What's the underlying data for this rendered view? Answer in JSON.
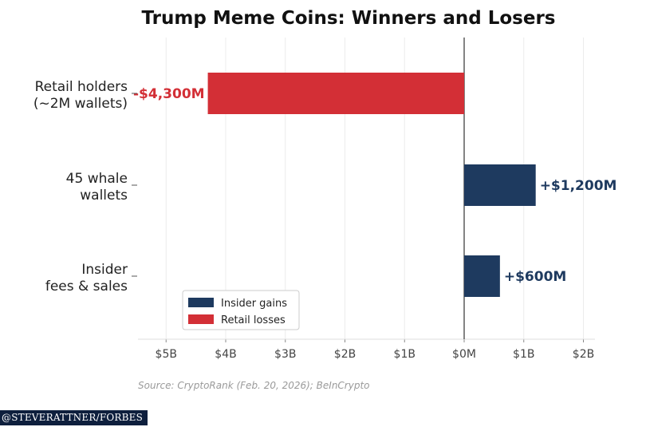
{
  "chart_data": {
    "type": "bar",
    "orientation": "horizontal",
    "title": "Trump Meme Coins: Winners and Losers",
    "categories": [
      [
        "Retail holders",
        "(~2M wallets)"
      ],
      [
        "45 whale",
        "wallets"
      ],
      [
        "Insider",
        "fees & sales"
      ]
    ],
    "values": [
      -4300,
      1200,
      600
    ],
    "value_units": "millions USD",
    "data_labels": [
      "-$4,300M",
      "+$1,200M",
      "+$600M"
    ],
    "bar_series": [
      "Retail losses",
      "Insider gains",
      "Insider gains"
    ],
    "xlim": [
      -5500,
      2200
    ],
    "xticks": [
      {
        "value": -5000,
        "label": "$5B"
      },
      {
        "value": -4000,
        "label": "$4B"
      },
      {
        "value": -3000,
        "label": "$3B"
      },
      {
        "value": -2000,
        "label": "$2B"
      },
      {
        "value": -1000,
        "label": "$1B"
      },
      {
        "value": 0,
        "label": "$0M"
      },
      {
        "value": 1000,
        "label": "$1B"
      },
      {
        "value": 2000,
        "label": "$2B"
      }
    ],
    "grid": "vertical",
    "legend": {
      "position": "lower-left",
      "entries": [
        {
          "name": "Insider gains",
          "color": "#1e3a5f"
        },
        {
          "name": "Retail losses",
          "color": "#d32f36"
        }
      ]
    },
    "colors": {
      "Insider gains": "#1e3a5f",
      "Retail losses": "#d32f36"
    },
    "source": "Source: CryptoRank (Feb. 20, 2026); BeInCrypto"
  },
  "watermark": "@STEVERATTNER/FORBES"
}
